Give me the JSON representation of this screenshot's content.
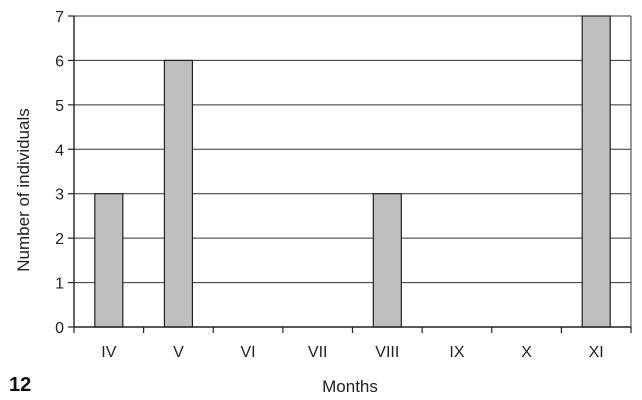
{
  "panel_label": "12",
  "chart_data": {
    "type": "bar",
    "categories": [
      "IV",
      "V",
      "VI",
      "VII",
      "VIII",
      "IX",
      "X",
      "XI"
    ],
    "values": [
      3,
      6,
      0,
      0,
      3,
      0,
      0,
      7
    ],
    "xlabel": "Months",
    "ylabel": "Number of individuals",
    "ylim": [
      0,
      7
    ],
    "yticks": [
      0,
      1,
      2,
      3,
      4,
      5,
      6,
      7
    ],
    "grid": true,
    "bar_color": "#bfbfc1",
    "bar_edge_color": "#222222"
  }
}
